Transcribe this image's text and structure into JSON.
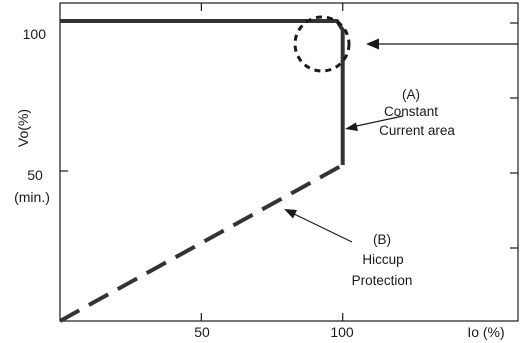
{
  "chart_data": {
    "type": "line",
    "title": "",
    "xlabel": "Io (%)",
    "ylabel": "Vo(%)",
    "xlim": [
      0,
      162
    ],
    "ylim": [
      0,
      106
    ],
    "x_ticks": [
      {
        "value": 50,
        "label": "50"
      },
      {
        "value": 100,
        "label": "100"
      }
    ],
    "y_ticks": [
      {
        "value": 100,
        "label": "100"
      },
      {
        "value": 50,
        "label": "50",
        "sublabel": "(min.)"
      }
    ],
    "grid": false,
    "series": [
      {
        "style": "solid",
        "color": "#333333",
        "x": [
          0,
          98,
          100,
          100
        ],
        "y": [
          100,
          100,
          97,
          52
        ]
      },
      {
        "style": "dashed",
        "color": "#333333",
        "x": [
          0,
          100
        ],
        "y": [
          0,
          52
        ]
      }
    ],
    "annotations": [
      {
        "id": "A",
        "lines": [
          "(A)",
          "Constant",
          "Current area"
        ],
        "points_to": [
          100,
          72
        ]
      },
      {
        "id": "B",
        "lines": [
          "(B)",
          "Hiccup",
          "Protection"
        ],
        "points_to": [
          80,
          32
        ]
      },
      {
        "id": "knee",
        "shape": "dashed-circle",
        "center": [
          99,
          100
        ],
        "arrow_from": "right"
      }
    ]
  }
}
